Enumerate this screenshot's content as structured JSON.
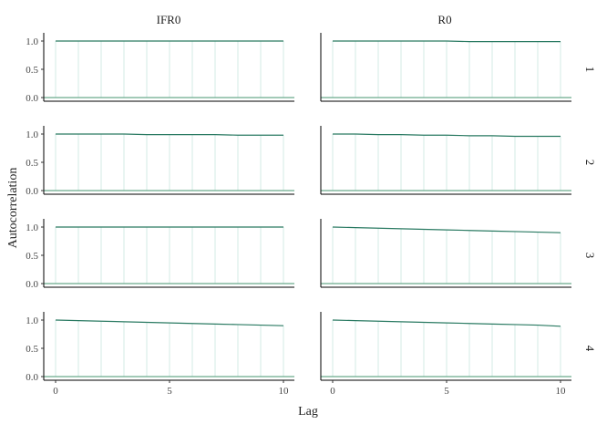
{
  "chart_data": {
    "type": "bar",
    "ylabel": "Autocorrelation",
    "xlabel": "Lag",
    "col_labels": [
      "IFR0",
      "R0"
    ],
    "row_labels": [
      "1",
      "2",
      "3",
      "4"
    ],
    "x": [
      0,
      1,
      2,
      3,
      4,
      5,
      6,
      7,
      8,
      9,
      10
    ],
    "x_ticks": [
      "0",
      "5",
      "10"
    ],
    "y_ticks": [
      "0.0",
      "0.5",
      "1.0"
    ],
    "ylim": [
      0,
      1
    ],
    "xlim": [
      0,
      10
    ],
    "colors": {
      "line": "#2a7a62",
      "bar": "#d3ebe6",
      "zero": "#6aaa8c",
      "axis": "#000000"
    },
    "panels": [
      {
        "row": "1",
        "col": "IFR0",
        "values": [
          1.0,
          1.0,
          1.0,
          1.0,
          1.0,
          1.0,
          1.0,
          1.0,
          1.0,
          1.0,
          1.0
        ]
      },
      {
        "row": "1",
        "col": "R0",
        "values": [
          1.0,
          1.0,
          1.0,
          1.0,
          1.0,
          1.0,
          0.99,
          0.99,
          0.99,
          0.99,
          0.99
        ]
      },
      {
        "row": "2",
        "col": "IFR0",
        "values": [
          1.0,
          1.0,
          1.0,
          1.0,
          0.99,
          0.99,
          0.99,
          0.99,
          0.98,
          0.98,
          0.98
        ]
      },
      {
        "row": "2",
        "col": "R0",
        "values": [
          1.0,
          1.0,
          0.99,
          0.99,
          0.98,
          0.98,
          0.97,
          0.97,
          0.96,
          0.96,
          0.96
        ]
      },
      {
        "row": "3",
        "col": "IFR0",
        "values": [
          1.0,
          1.0,
          1.0,
          1.0,
          1.0,
          1.0,
          1.0,
          1.0,
          1.0,
          1.0,
          1.0
        ]
      },
      {
        "row": "3",
        "col": "R0",
        "values": [
          1.0,
          0.99,
          0.98,
          0.97,
          0.96,
          0.95,
          0.94,
          0.93,
          0.92,
          0.91,
          0.9
        ]
      },
      {
        "row": "4",
        "col": "IFR0",
        "values": [
          1.0,
          0.99,
          0.98,
          0.97,
          0.96,
          0.95,
          0.94,
          0.93,
          0.92,
          0.91,
          0.9
        ]
      },
      {
        "row": "4",
        "col": "R0",
        "values": [
          1.0,
          0.99,
          0.98,
          0.97,
          0.96,
          0.95,
          0.94,
          0.93,
          0.92,
          0.91,
          0.89
        ]
      }
    ]
  }
}
